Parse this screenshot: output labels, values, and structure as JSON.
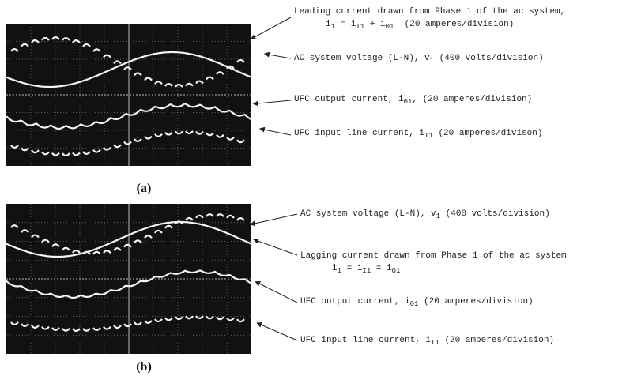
{
  "panels": [
    {
      "caption": "(a)",
      "annotations": [
        {
          "lines": [
            [
              "Leading current drawn from Phase 1 of the ac system,"
            ],
            [
              "i",
              "1",
              " = i",
              "I1",
              " + i",
              "01",
              "  (20 amperes/division)"
            ]
          ]
        },
        {
          "lines": [
            [
              "AC system voltage (L-N), v",
              "1",
              " (400 volts/division)"
            ]
          ]
        },
        {
          "lines": [
            [
              "UFC output current, i",
              "01",
              ", (20 amperes/division)"
            ]
          ]
        },
        {
          "lines": [
            [
              "UFC input line current, i",
              "I1",
              " (20 amperes/divison)"
            ]
          ]
        }
      ]
    },
    {
      "caption": "(b)",
      "annotations": [
        {
          "lines": [
            [
              "AC system voltage (L-N), v",
              "1",
              " (400 volts/division)"
            ]
          ]
        },
        {
          "lines": [
            [
              "Lagging current drawn from Phase 1 of the ac system"
            ],
            [
              "i",
              "1",
              " = i",
              "I1",
              " = i",
              "01"
            ]
          ]
        },
        {
          "lines": [
            [
              "UFC output current, i",
              "01",
              " (20 amperes/division)"
            ]
          ]
        },
        {
          "lines": [
            [
              "UFC input line current, i",
              "I1",
              " (20 amperes/division)"
            ]
          ]
        }
      ]
    }
  ]
}
